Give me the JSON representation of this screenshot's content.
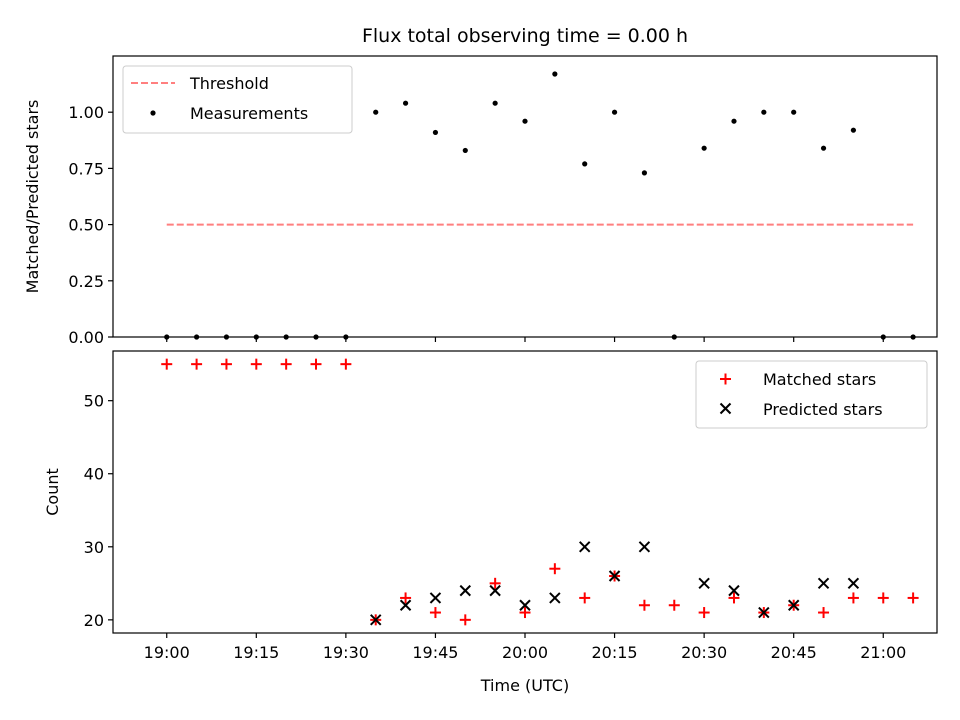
{
  "chart_data": [
    {
      "type": "scatter",
      "title": "Flux total observing time = 0.00 h",
      "xlabel": "",
      "ylabel": "Matched/Predicted stars",
      "xlim": [
        "18:51",
        "21:09"
      ],
      "ylim": [
        0.0,
        1.25
      ],
      "yticks": [
        0.0,
        0.25,
        0.5,
        0.75,
        1.0
      ],
      "ytick_labels": [
        "0.00",
        "0.25",
        "0.50",
        "0.75",
        "1.00"
      ],
      "xticks": [
        "19:00",
        "19:15",
        "19:30",
        "19:45",
        "20:00",
        "20:15",
        "20:30",
        "20:45",
        "21:00"
      ],
      "xtick_labels_shown": false,
      "legend_position": "top-left",
      "grid": false,
      "series": [
        {
          "name": "Threshold",
          "style": "dashed-line",
          "color": "#ff7f7f",
          "x": [
            "19:00",
            "21:05"
          ],
          "y": [
            0.5,
            0.5
          ]
        },
        {
          "name": "Measurements",
          "style": "dot",
          "color": "#000000",
          "x": [
            "19:00",
            "19:05",
            "19:10",
            "19:15",
            "19:20",
            "19:25",
            "19:30",
            "19:35",
            "19:40",
            "19:45",
            "19:50",
            "19:55",
            "20:00",
            "20:05",
            "20:10",
            "20:15",
            "20:20",
            "20:25",
            "20:30",
            "20:35",
            "20:40",
            "20:45",
            "20:50",
            "20:55",
            "21:00",
            "21:05"
          ],
          "y": [
            0.0,
            0.0,
            0.0,
            0.0,
            0.0,
            0.0,
            0.0,
            1.0,
            1.04,
            0.91,
            0.83,
            1.04,
            0.96,
            1.17,
            0.77,
            1.0,
            0.73,
            0.0,
            0.84,
            0.96,
            1.0,
            1.0,
            0.84,
            0.92,
            0.0,
            0.0
          ]
        }
      ]
    },
    {
      "type": "scatter",
      "title": "",
      "xlabel": "Time (UTC)",
      "ylabel": "Count",
      "xlim": [
        "18:51",
        "21:09"
      ],
      "ylim": [
        18.2,
        56.8
      ],
      "yticks": [
        20,
        30,
        40,
        50
      ],
      "ytick_labels": [
        "20",
        "30",
        "40",
        "50"
      ],
      "xticks": [
        "19:00",
        "19:15",
        "19:30",
        "19:45",
        "20:00",
        "20:15",
        "20:30",
        "20:45",
        "21:00"
      ],
      "xtick_labels": [
        "19:00",
        "19:15",
        "19:30",
        "19:45",
        "20:00",
        "20:15",
        "20:30",
        "20:45",
        "21:00"
      ],
      "legend_position": "top-right",
      "grid": false,
      "series": [
        {
          "name": "Matched stars",
          "marker": "plus",
          "color": "#ff0000",
          "x": [
            "19:00",
            "19:05",
            "19:10",
            "19:15",
            "19:20",
            "19:25",
            "19:30",
            "19:35",
            "19:40",
            "19:45",
            "19:50",
            "19:55",
            "20:00",
            "20:05",
            "20:10",
            "20:15",
            "20:20",
            "20:25",
            "20:30",
            "20:35",
            "20:40",
            "20:45",
            "20:50",
            "20:55",
            "21:00",
            "21:05"
          ],
          "y": [
            55,
            55,
            55,
            55,
            55,
            55,
            55,
            20,
            23,
            21,
            20,
            25,
            21,
            27,
            23,
            26,
            22,
            22,
            21,
            23,
            21,
            22,
            21,
            23,
            23,
            23
          ]
        },
        {
          "name": "Predicted stars",
          "marker": "x",
          "color": "#000000",
          "x": [
            "19:35",
            "19:40",
            "19:45",
            "19:50",
            "19:55",
            "20:00",
            "20:05",
            "20:10",
            "20:15",
            "20:20",
            "20:30",
            "20:35",
            "20:40",
            "20:45",
            "20:50",
            "20:55"
          ],
          "y": [
            20,
            22,
            23,
            24,
            24,
            22,
            23,
            30,
            26,
            30,
            25,
            24,
            21,
            22,
            25,
            25
          ]
        }
      ]
    }
  ]
}
